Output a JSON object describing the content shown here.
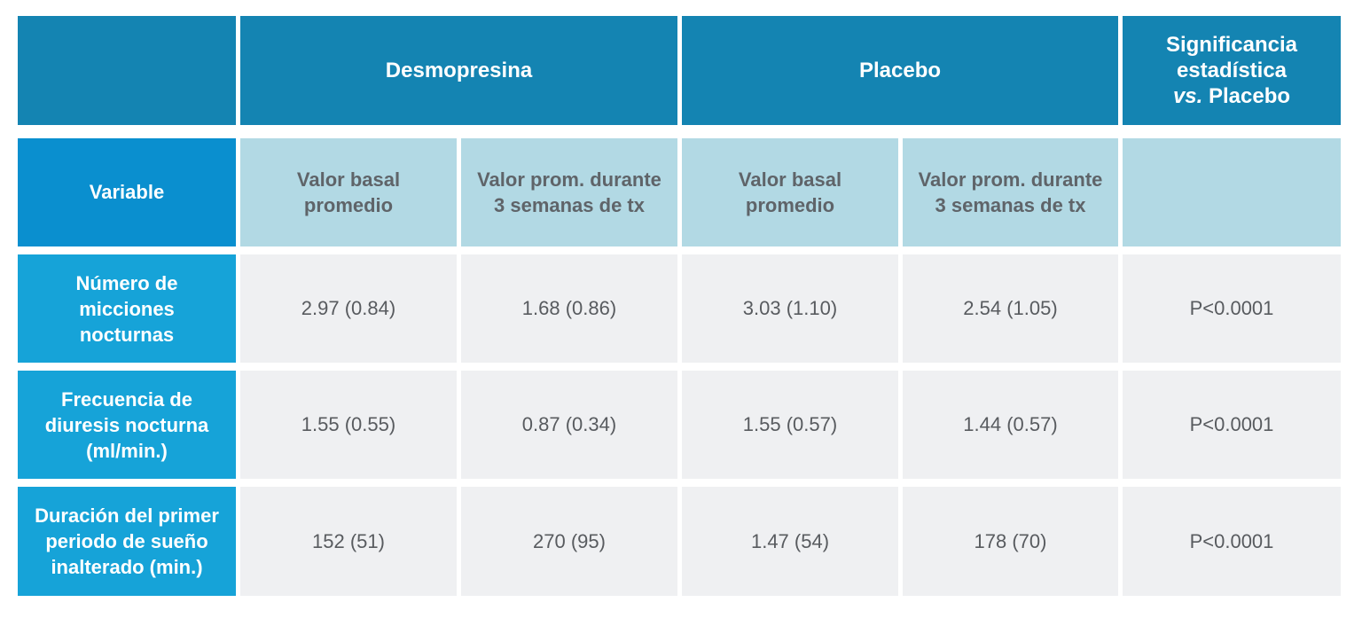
{
  "header": {
    "group1": "Desmopresina",
    "group2": "Placebo",
    "significance": {
      "line1": "Significancia",
      "line2": "estadística",
      "line3_em": "vs.",
      "line3_rest": " Placebo"
    }
  },
  "subheader": {
    "variable": "Variable",
    "basal": [
      "Valor basal",
      "promedio"
    ],
    "during": [
      "Valor prom. durante",
      "3 semanas de tx"
    ]
  },
  "rows": [
    {
      "label": [
        "Número de",
        "micciones",
        "nocturnas"
      ],
      "values": [
        "2.97 (0.84)",
        "1.68 (0.86)",
        "3.03 (1.10)",
        "2.54 (1.05)",
        "P<0.0001"
      ]
    },
    {
      "label": [
        "Frecuencia de",
        "diuresis nocturna",
        "(ml/min.)"
      ],
      "values": [
        "1.55 (0.55)",
        "0.87 (0.34)",
        "1.55 (0.57)",
        "1.44 (0.57)",
        "P<0.0001"
      ]
    },
    {
      "label": [
        "Duración del primer",
        "periodo de sueño",
        "inalterado (min.)"
      ],
      "values": [
        "152 (51)",
        "270 (95)",
        "1.47 (54)",
        "178 (70)",
        "P<0.0001"
      ]
    }
  ],
  "colors": {
    "header_dark": "#1484b2",
    "variable_header": "#0a8fcf",
    "subheader_light": "#b2d9e4",
    "row_label": "#16a3d8",
    "value_cell": "#eff0f2"
  }
}
